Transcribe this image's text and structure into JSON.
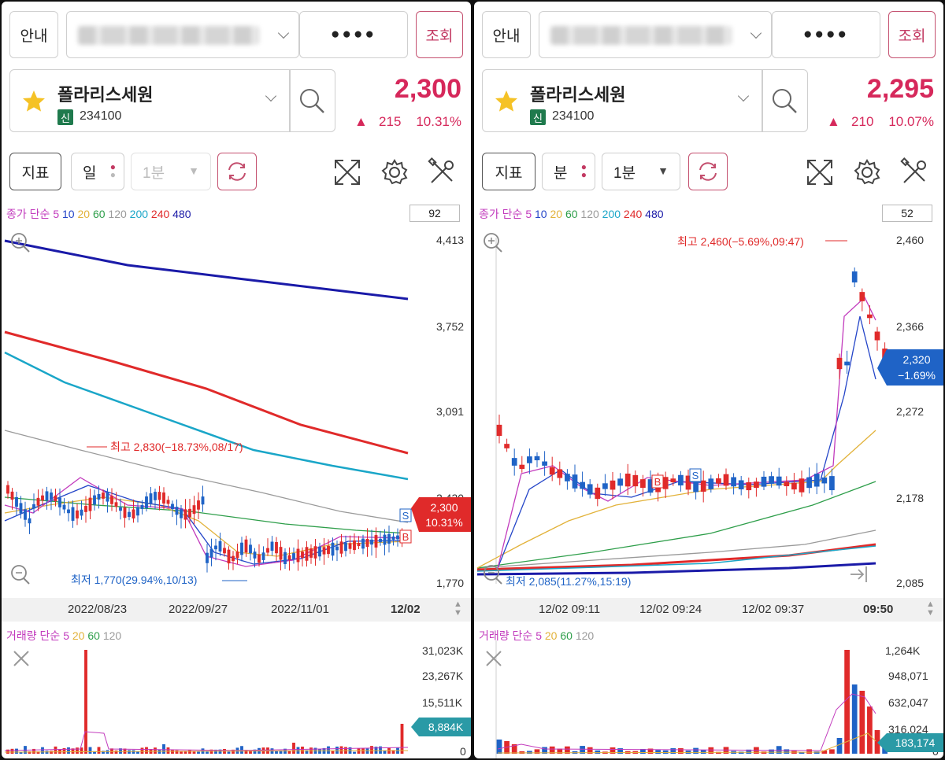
{
  "panels": [
    {
      "info_btn": "안내",
      "account_mask": "●●●●",
      "query_btn": "조회",
      "stock_name": "폴라리스세원",
      "market_badge": "신",
      "stock_code": "234100",
      "price": "2,300",
      "change": "215",
      "change_pct": "10.31%",
      "indicator_btn": "지표",
      "period_btn": "일",
      "interval_btn": "1분",
      "legend": {
        "prefix": "종가 단순",
        "ma": [
          "5",
          "10",
          "20",
          "60",
          "120",
          "200",
          "240",
          "480"
        ]
      },
      "count": "92",
      "y_ticks": [
        "4,413",
        "3,752",
        "3,091",
        "2,430",
        "1,770"
      ],
      "x_ticks": [
        "2022/08/23",
        "2022/09/27",
        "2022/11/01",
        "12/02"
      ],
      "high_note": "최고 2,830(−18.73%,08/17)",
      "low_note": "최저 1,770(29.94%,10/13)",
      "price_tag": "2,300",
      "price_tag_sub": "10.31%",
      "marker_s": "S",
      "marker_b": "B",
      "vol_legend": {
        "prefix": "거래량 단순",
        "ma": [
          "5",
          "20",
          "60",
          "120"
        ]
      },
      "vol_ticks": [
        "31,023K",
        "23,267K",
        "15,511K",
        "0"
      ],
      "vol_tag": "8,884K"
    },
    {
      "info_btn": "안내",
      "account_mask": "●●●●",
      "query_btn": "조회",
      "stock_name": "폴라리스세원",
      "market_badge": "신",
      "stock_code": "234100",
      "price": "2,295",
      "change": "210",
      "change_pct": "10.07%",
      "indicator_btn": "지표",
      "period_btn": "분",
      "interval_btn": "1분",
      "legend": {
        "prefix": "종가 단순",
        "ma": [
          "5",
          "10",
          "20",
          "60",
          "120",
          "200",
          "240",
          "480"
        ]
      },
      "count": "52",
      "y_ticks": [
        "2,460",
        "2,366",
        "2,272",
        "2,178",
        "2,085"
      ],
      "x_ticks": [
        "12/02 09:11",
        "12/02 09:24",
        "12/02 09:37",
        "09:50"
      ],
      "high_note": "최고 2,460(−5.69%,09:47)",
      "low_note": "최저 2,085(11.27%,15:19)",
      "price_tag": "2,320",
      "price_tag_sub": "−1.69%",
      "marker_s": "S",
      "marker_b": "B",
      "vol_legend": {
        "prefix": "거래량 단순",
        "ma": [
          "5",
          "20",
          "60",
          "120"
        ]
      },
      "vol_ticks": [
        "1,264K",
        "948,071",
        "632,047",
        "316,024",
        "0"
      ],
      "vol_tag": "183,174"
    }
  ],
  "ma_colors": [
    "#c23bbd",
    "#2445c8",
    "#e2b23a",
    "#2e9e4a",
    "#9a9a9a",
    "#1aa6c8",
    "#e02a2a",
    "#1a1aa8"
  ],
  "colors": {
    "up": "#e02a2a",
    "down": "#1f63c6",
    "accent": "#d6285b"
  }
}
